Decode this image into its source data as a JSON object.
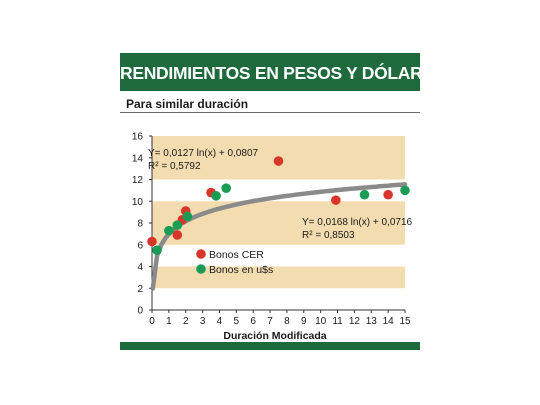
{
  "header": {
    "title": "RENDIMIENTOS EN PESOS Y DÓLARES",
    "subtitle": "Para similar duración"
  },
  "colors": {
    "brand_green": "#1e6a3c",
    "band": "#f3dcb0",
    "trend": "#8a8a8a",
    "cer": "#d9362b",
    "usd": "#1a9c55"
  },
  "chart_data": {
    "type": "scatter",
    "xlabel": "Duración Modificada",
    "ylabel": "",
    "xlim": [
      0,
      15
    ],
    "ylim": [
      0,
      16
    ],
    "x_ticks": [
      "0",
      "1",
      "2",
      "3",
      "4",
      "5",
      "6",
      "7",
      "8",
      "9",
      "10",
      "11",
      "12",
      "13",
      "14",
      "15"
    ],
    "y_ticks": [
      "0",
      "2",
      "4",
      "6",
      "8",
      "10",
      "12",
      "14",
      "16"
    ],
    "bands": [
      [
        2,
        4
      ],
      [
        6,
        10
      ],
      [
        12,
        16
      ]
    ],
    "series": [
      {
        "name": "Bonos CER",
        "color": "#d9362b",
        "points": [
          {
            "x": 0.0,
            "y": 6.3
          },
          {
            "x": 1.5,
            "y": 6.9
          },
          {
            "x": 1.8,
            "y": 8.3
          },
          {
            "x": 2.0,
            "y": 9.1
          },
          {
            "x": 3.5,
            "y": 10.8
          },
          {
            "x": 7.5,
            "y": 13.7
          },
          {
            "x": 10.9,
            "y": 10.1
          },
          {
            "x": 14.0,
            "y": 10.6
          }
        ]
      },
      {
        "name": "Bonos en u$s",
        "color": "#1a9c55",
        "points": [
          {
            "x": 0.3,
            "y": 5.5
          },
          {
            "x": 1.0,
            "y": 7.3
          },
          {
            "x": 1.5,
            "y": 7.8
          },
          {
            "x": 2.1,
            "y": 8.6
          },
          {
            "x": 3.8,
            "y": 10.5
          },
          {
            "x": 4.4,
            "y": 11.2
          },
          {
            "x": 12.6,
            "y": 10.6
          },
          {
            "x": 15.0,
            "y": 11.0
          }
        ]
      }
    ],
    "annotations": [
      {
        "line1": "Y= 0,0127 ln(x) + 0,0807",
        "line2": "R² = 0,5792"
      },
      {
        "line1": "Y= 0,0168 ln(x) + 0,0716",
        "line2": "R² = 0,8503"
      }
    ]
  }
}
